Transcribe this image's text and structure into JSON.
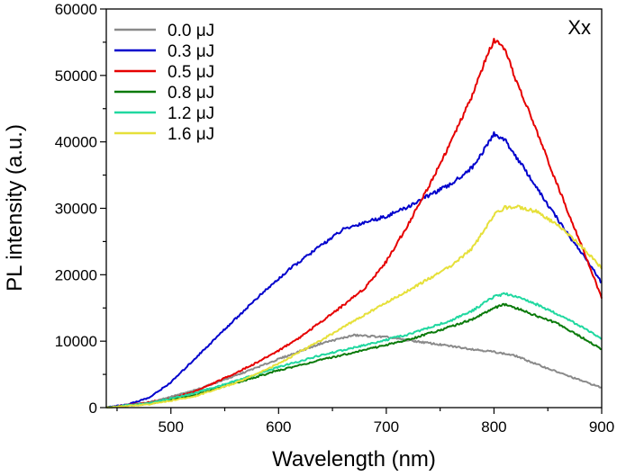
{
  "chart_data": {
    "type": "line",
    "title": "",
    "annotation": "Xx",
    "xlabel": "Wavelength (nm)",
    "ylabel": "PL intensity (a.u.)",
    "xlim": [
      440,
      900
    ],
    "ylim": [
      0,
      60000
    ],
    "x_ticks": [
      500,
      600,
      700,
      800,
      900
    ],
    "y_ticks": [
      0,
      10000,
      20000,
      30000,
      40000,
      50000,
      60000
    ],
    "grid": false,
    "legend_position": "top-left",
    "series": [
      {
        "name": "0.0 μJ",
        "color": "#8a8a8a",
        "x": [
          440,
          480,
          520,
          560,
          600,
          640,
          670,
          700,
          740,
          780,
          800,
          820,
          840,
          870,
          900
        ],
        "y": [
          0,
          800,
          2500,
          4800,
          7300,
          9700,
          10900,
          10600,
          9700,
          8800,
          8400,
          7800,
          6500,
          4700,
          3000
        ]
      },
      {
        "name": "0.3 μJ",
        "color": "#0000cc",
        "x": [
          440,
          460,
          480,
          500,
          520,
          550,
          580,
          610,
          640,
          660,
          680,
          700,
          720,
          740,
          760,
          780,
          790,
          800,
          810,
          830,
          850,
          870,
          885,
          900
        ],
        "y": [
          0,
          500,
          1500,
          3800,
          7000,
          11800,
          16500,
          20800,
          24500,
          26800,
          27900,
          28800,
          30200,
          32000,
          33600,
          36200,
          38600,
          41200,
          40300,
          35500,
          30500,
          25800,
          22500,
          18800
        ]
      },
      {
        "name": "0.5 μJ",
        "color": "#e60000",
        "x": [
          440,
          480,
          500,
          520,
          540,
          560,
          580,
          600,
          620,
          640,
          660,
          680,
          700,
          720,
          740,
          760,
          780,
          790,
          800,
          810,
          820,
          840,
          860,
          880,
          900
        ],
        "y": [
          0,
          800,
          1400,
          2300,
          3700,
          5200,
          6800,
          8600,
          10600,
          13000,
          15400,
          18000,
          22000,
          27500,
          33500,
          40000,
          47000,
          51500,
          55300,
          53800,
          49500,
          41500,
          33000,
          25000,
          16500
        ]
      },
      {
        "name": "0.8 μJ",
        "color": "#0a7a0a",
        "x": [
          440,
          480,
          520,
          560,
          600,
          640,
          680,
          720,
          760,
          780,
          800,
          810,
          820,
          840,
          860,
          880,
          900
        ],
        "y": [
          0,
          600,
          1800,
          3700,
          5600,
          7200,
          8700,
          10200,
          12200,
          13300,
          15000,
          15500,
          15000,
          13800,
          12600,
          10700,
          8800
        ]
      },
      {
        "name": "1.2 μJ",
        "color": "#20d8a0",
        "x": [
          440,
          480,
          520,
          560,
          600,
          640,
          680,
          720,
          760,
          780,
          800,
          810,
          820,
          840,
          860,
          880,
          900
        ],
        "y": [
          0,
          700,
          2100,
          4000,
          6100,
          7900,
          9400,
          11000,
          13100,
          14600,
          16700,
          17100,
          16800,
          15500,
          14000,
          12300,
          10300
        ]
      },
      {
        "name": "1.6 μJ",
        "color": "#e6e03a",
        "x": [
          440,
          480,
          520,
          560,
          600,
          640,
          680,
          720,
          760,
          780,
          800,
          810,
          820,
          840,
          860,
          880,
          900
        ],
        "y": [
          0,
          500,
          1600,
          3700,
          6600,
          10200,
          14000,
          17600,
          21300,
          24000,
          29000,
          30100,
          30300,
          29500,
          27300,
          24500,
          21000
        ]
      }
    ]
  }
}
